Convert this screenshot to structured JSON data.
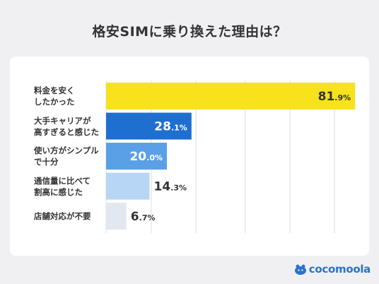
{
  "title": "格安SIMに乗り換えた理由は？",
  "brand": "cocomoola",
  "colors": {
    "bar_colors": [
      "#f7e21b",
      "#1f6fd0",
      "#5aa0e6",
      "#b7d6f5",
      "#e2e8ef"
    ],
    "label_light": "#ffffff",
    "label_dark": "#333333",
    "grid": "#dcdcdc",
    "brand": "#2a73c9"
  },
  "chart_data": {
    "type": "bar",
    "orientation": "horizontal",
    "categories": [
      [
        "料金を安く",
        "したかった"
      ],
      [
        "大手キャリアが",
        "高すぎると感じた"
      ],
      [
        "使い方がシンプル",
        "で十分"
      ],
      [
        "通信量に比べて",
        "割高に感じた"
      ],
      [
        "店舗対応が不要"
      ]
    ],
    "values": [
      81.9,
      28.1,
      20.0,
      14.3,
      6.7
    ],
    "value_labels": [
      {
        "int": "81",
        "dec": ".9%"
      },
      {
        "int": "28",
        "dec": ".1%"
      },
      {
        "int": "20",
        "dec": ".0%"
      },
      {
        "int": "14",
        "dec": ".3%"
      },
      {
        "int": "6",
        "dec": ".7%"
      }
    ],
    "xlim": [
      0,
      100
    ],
    "grid": true,
    "legend": "none"
  }
}
